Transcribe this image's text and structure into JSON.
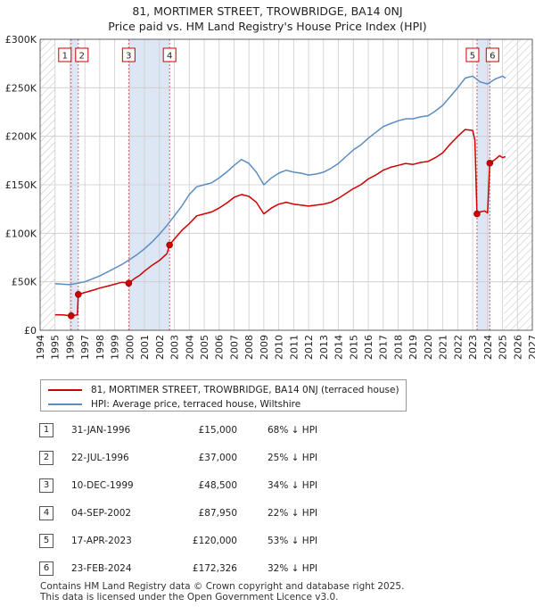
{
  "chart_data": {
    "type": "line",
    "title": "81, MORTIMER STREET, TROWBRIDGE, BA14 0NJ",
    "subtitle": "Price paid vs. HM Land Registry's House Price Index (HPI)",
    "xlim": [
      1994,
      2027
    ],
    "ylim": [
      0,
      300000
    ],
    "y_ticks": [
      0,
      50000,
      100000,
      150000,
      200000,
      250000,
      300000
    ],
    "y_tick_labels": [
      "£0",
      "£50K",
      "£100K",
      "£150K",
      "£200K",
      "£250K",
      "£300K"
    ],
    "x_ticks": [
      1994,
      1995,
      1996,
      1997,
      1998,
      1999,
      2000,
      2001,
      2002,
      2003,
      2004,
      2005,
      2006,
      2007,
      2008,
      2009,
      2010,
      2011,
      2012,
      2013,
      2014,
      2015,
      2016,
      2017,
      2018,
      2019,
      2020,
      2021,
      2022,
      2023,
      2024,
      2025,
      2026,
      2027
    ],
    "x_tick_labels": [
      "1994",
      "1995",
      "1996",
      "1997",
      "1998",
      "1999",
      "2000",
      "2001",
      "2002",
      "2003",
      "2004",
      "2005",
      "2006",
      "2007",
      "2008",
      "2009",
      "2010",
      "2011",
      "2012",
      "2013",
      "2014",
      "2015",
      "2016",
      "2017",
      "2018",
      "2019",
      "2020",
      "2021",
      "2022",
      "2023",
      "2024",
      "2025",
      "2026",
      "2027"
    ],
    "grid": true,
    "shaded_ranges": [
      [
        1996.05,
        1996.55
      ],
      [
        1999.94,
        2002.68
      ],
      [
        2023.29,
        2024.15
      ]
    ],
    "hatched_ranges": [
      [
        1994.0,
        1995.0
      ],
      [
        2025.1,
        2027.0
      ]
    ],
    "series": [
      {
        "name": "81, MORTIMER STREET, TROWBRIDGE, BA14 0NJ (terraced house)",
        "color": "#cc0000",
        "points": [
          [
            1995.0,
            16000
          ],
          [
            1995.5,
            15800
          ],
          [
            1996.08,
            15000
          ],
          [
            1996.3,
            15400
          ],
          [
            1996.5,
            16000
          ],
          [
            1996.56,
            37000
          ],
          [
            1997.0,
            39000
          ],
          [
            1997.5,
            41000
          ],
          [
            1998.0,
            43500
          ],
          [
            1998.5,
            45500
          ],
          [
            1999.0,
            47500
          ],
          [
            1999.5,
            49500
          ],
          [
            1999.94,
            48500
          ],
          [
            2000.3,
            53000
          ],
          [
            2000.7,
            57000
          ],
          [
            2001.0,
            61000
          ],
          [
            2001.5,
            67000
          ],
          [
            2002.0,
            72000
          ],
          [
            2002.5,
            79000
          ],
          [
            2002.68,
            87950
          ],
          [
            2003.0,
            94000
          ],
          [
            2003.5,
            103000
          ],
          [
            2004.0,
            110000
          ],
          [
            2004.5,
            118000
          ],
          [
            2005.0,
            120000
          ],
          [
            2005.5,
            122000
          ],
          [
            2006.0,
            126000
          ],
          [
            2006.5,
            131000
          ],
          [
            2007.0,
            137000
          ],
          [
            2007.5,
            140000
          ],
          [
            2008.0,
            138000
          ],
          [
            2008.5,
            132000
          ],
          [
            2009.0,
            120000
          ],
          [
            2009.5,
            126000
          ],
          [
            2010.0,
            130000
          ],
          [
            2010.5,
            132000
          ],
          [
            2011.0,
            130000
          ],
          [
            2011.5,
            129000
          ],
          [
            2012.0,
            128000
          ],
          [
            2012.5,
            129000
          ],
          [
            2013.0,
            130000
          ],
          [
            2013.5,
            132000
          ],
          [
            2014.0,
            136000
          ],
          [
            2014.5,
            141000
          ],
          [
            2015.0,
            146000
          ],
          [
            2015.5,
            150000
          ],
          [
            2016.0,
            156000
          ],
          [
            2016.5,
            160000
          ],
          [
            2017.0,
            165000
          ],
          [
            2017.5,
            168000
          ],
          [
            2018.0,
            170000
          ],
          [
            2018.5,
            172000
          ],
          [
            2019.0,
            171000
          ],
          [
            2019.5,
            173000
          ],
          [
            2020.0,
            174000
          ],
          [
            2020.5,
            178000
          ],
          [
            2021.0,
            183000
          ],
          [
            2021.5,
            192000
          ],
          [
            2022.0,
            200000
          ],
          [
            2022.5,
            207000
          ],
          [
            2023.0,
            206000
          ],
          [
            2023.15,
            196000
          ],
          [
            2023.29,
            120000
          ],
          [
            2023.5,
            122000
          ],
          [
            2023.8,
            123000
          ],
          [
            2024.0,
            121000
          ],
          [
            2024.15,
            172326
          ],
          [
            2024.5,
            176000
          ],
          [
            2024.8,
            180000
          ],
          [
            2025.0,
            178000
          ],
          [
            2025.2,
            179000
          ]
        ]
      },
      {
        "name": "HPI: Average price, terraced house, Wiltshire",
        "color": "#5b8cc2",
        "points": [
          [
            1995.0,
            48000
          ],
          [
            1995.5,
            47500
          ],
          [
            1996.0,
            47000
          ],
          [
            1996.5,
            48500
          ],
          [
            1997.0,
            50000
          ],
          [
            1997.5,
            53000
          ],
          [
            1998.0,
            56000
          ],
          [
            1998.5,
            60000
          ],
          [
            1999.0,
            64000
          ],
          [
            1999.5,
            68000
          ],
          [
            2000.0,
            73000
          ],
          [
            2000.5,
            78000
          ],
          [
            2001.0,
            84000
          ],
          [
            2001.5,
            91000
          ],
          [
            2002.0,
            99000
          ],
          [
            2002.5,
            108000
          ],
          [
            2003.0,
            118000
          ],
          [
            2003.5,
            128000
          ],
          [
            2004.0,
            140000
          ],
          [
            2004.5,
            148000
          ],
          [
            2005.0,
            150000
          ],
          [
            2005.5,
            152000
          ],
          [
            2006.0,
            157000
          ],
          [
            2006.5,
            163000
          ],
          [
            2007.0,
            170000
          ],
          [
            2007.5,
            176000
          ],
          [
            2008.0,
            172000
          ],
          [
            2008.5,
            163000
          ],
          [
            2009.0,
            150000
          ],
          [
            2009.5,
            157000
          ],
          [
            2010.0,
            162000
          ],
          [
            2010.5,
            165000
          ],
          [
            2011.0,
            163000
          ],
          [
            2011.5,
            162000
          ],
          [
            2012.0,
            160000
          ],
          [
            2012.5,
            161000
          ],
          [
            2013.0,
            163000
          ],
          [
            2013.5,
            167000
          ],
          [
            2014.0,
            172000
          ],
          [
            2014.5,
            179000
          ],
          [
            2015.0,
            186000
          ],
          [
            2015.5,
            191000
          ],
          [
            2016.0,
            198000
          ],
          [
            2016.5,
            204000
          ],
          [
            2017.0,
            210000
          ],
          [
            2017.5,
            213000
          ],
          [
            2018.0,
            216000
          ],
          [
            2018.5,
            218000
          ],
          [
            2019.0,
            218000
          ],
          [
            2019.5,
            220000
          ],
          [
            2020.0,
            221000
          ],
          [
            2020.5,
            226000
          ],
          [
            2021.0,
            232000
          ],
          [
            2021.5,
            241000
          ],
          [
            2022.0,
            250000
          ],
          [
            2022.5,
            260000
          ],
          [
            2023.0,
            262000
          ],
          [
            2023.5,
            256000
          ],
          [
            2024.0,
            254000
          ],
          [
            2024.5,
            259000
          ],
          [
            2025.0,
            262000
          ],
          [
            2025.2,
            260000
          ]
        ]
      }
    ],
    "sales": [
      {
        "id": "1",
        "date": "31-JAN-1996",
        "price": "£15,000",
        "hpi_diff": "68% ↓ HPI",
        "x": 1996.08,
        "y": 15000
      },
      {
        "id": "2",
        "date": "22-JUL-1996",
        "price": "£37,000",
        "hpi_diff": "25% ↓ HPI",
        "x": 1996.56,
        "y": 37000
      },
      {
        "id": "3",
        "date": "10-DEC-1999",
        "price": "£48,500",
        "hpi_diff": "34% ↓ HPI",
        "x": 1999.94,
        "y": 48500
      },
      {
        "id": "4",
        "date": "04-SEP-2002",
        "price": "£87,950",
        "hpi_diff": "22% ↓ HPI",
        "x": 2002.68,
        "y": 87950
      },
      {
        "id": "5",
        "date": "17-APR-2023",
        "price": "£120,000",
        "hpi_diff": "53% ↓ HPI",
        "x": 2023.29,
        "y": 120000
      },
      {
        "id": "6",
        "date": "23-FEB-2024",
        "price": "£172,326",
        "hpi_diff": "32% ↓ HPI",
        "x": 2024.15,
        "y": 172326
      }
    ]
  },
  "legend": {
    "property_label": "81, MORTIMER STREET, TROWBRIDGE, BA14 0NJ (terraced house)",
    "hpi_label": "HPI: Average price, terraced house, Wiltshire"
  },
  "footer": {
    "line1": "Contains HM Land Registry data © Crown copyright and database right 2025.",
    "line2": "This data is licensed under the Open Government Licence v3.0."
  },
  "colors": {
    "property_line": "#cc0000",
    "hpi_line": "#5b8cc2",
    "shade": "#dde6f5",
    "grid": "#cccccc",
    "marker_box_border": "#cc0000",
    "vline": "#d06060"
  }
}
